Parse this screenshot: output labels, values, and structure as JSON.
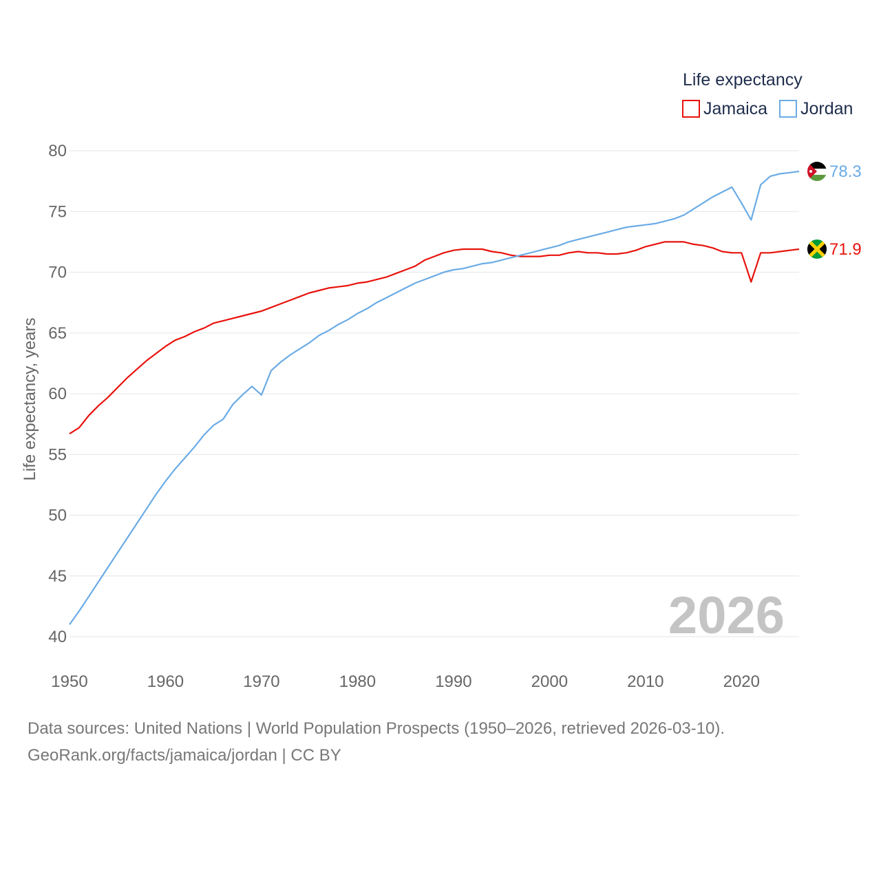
{
  "chart_data": {
    "type": "line",
    "title": "",
    "legend_title": "Life expectancy",
    "ylabel": "Life expectancy, years",
    "xlabel": "",
    "ylim": [
      40,
      80
    ],
    "xlim": [
      1950,
      2026
    ],
    "yticks": [
      40,
      45,
      50,
      55,
      60,
      65,
      70,
      75,
      80
    ],
    "xticks": [
      1950,
      1960,
      1970,
      1980,
      1990,
      2000,
      2010,
      2020
    ],
    "grid": true,
    "legend_position": "top-right",
    "year_overlay": "2026",
    "x": [
      1950,
      1951,
      1952,
      1953,
      1954,
      1955,
      1956,
      1957,
      1958,
      1959,
      1960,
      1961,
      1962,
      1963,
      1964,
      1965,
      1966,
      1967,
      1968,
      1969,
      1970,
      1971,
      1972,
      1973,
      1974,
      1975,
      1976,
      1977,
      1978,
      1979,
      1980,
      1981,
      1982,
      1983,
      1984,
      1985,
      1986,
      1987,
      1988,
      1989,
      1990,
      1991,
      1992,
      1993,
      1994,
      1995,
      1996,
      1997,
      1998,
      1999,
      2000,
      2001,
      2002,
      2003,
      2004,
      2005,
      2006,
      2007,
      2008,
      2009,
      2010,
      2011,
      2012,
      2013,
      2014,
      2015,
      2016,
      2017,
      2018,
      2019,
      2020,
      2021,
      2022,
      2023,
      2024,
      2025,
      2026
    ],
    "series": [
      {
        "name": "Jamaica",
        "color": "#e8120c",
        "end_label": "71.9",
        "flag": "jamaica-flag-icon",
        "values": [
          56.7,
          57.2,
          58.2,
          59.0,
          59.7,
          60.5,
          61.3,
          62.0,
          62.7,
          63.3,
          63.9,
          64.4,
          64.7,
          65.1,
          65.4,
          65.8,
          66.0,
          66.2,
          66.4,
          66.6,
          66.8,
          67.1,
          67.4,
          67.7,
          68.0,
          68.3,
          68.5,
          68.7,
          68.8,
          68.9,
          69.1,
          69.2,
          69.4,
          69.6,
          69.9,
          70.2,
          70.5,
          71.0,
          71.3,
          71.6,
          71.8,
          71.9,
          71.9,
          71.9,
          71.7,
          71.6,
          71.4,
          71.3,
          71.3,
          71.3,
          71.4,
          71.4,
          71.6,
          71.7,
          71.6,
          71.6,
          71.5,
          71.5,
          71.6,
          71.8,
          72.1,
          72.3,
          72.5,
          72.5,
          72.5,
          72.3,
          72.2,
          72.0,
          71.7,
          71.6,
          71.6,
          69.2,
          71.6,
          71.6,
          71.7,
          71.8,
          71.9
        ]
      },
      {
        "name": "Jordan",
        "color": "#6aabe6",
        "end_label": "78.3",
        "flag": "jordan-flag-icon",
        "values": [
          41.0,
          42.1,
          43.3,
          44.5,
          45.7,
          46.9,
          48.1,
          49.3,
          50.5,
          51.7,
          52.8,
          53.8,
          54.7,
          55.6,
          56.6,
          57.4,
          57.9,
          59.1,
          59.9,
          60.6,
          59.9,
          61.9,
          62.6,
          63.2,
          63.7,
          64.2,
          64.8,
          65.2,
          65.7,
          66.1,
          66.6,
          67.0,
          67.5,
          67.9,
          68.3,
          68.7,
          69.1,
          69.4,
          69.7,
          70.0,
          70.2,
          70.3,
          70.5,
          70.7,
          70.8,
          71.0,
          71.2,
          71.4,
          71.6,
          71.8,
          72.0,
          72.2,
          72.5,
          72.7,
          72.9,
          73.1,
          73.3,
          73.5,
          73.7,
          73.8,
          73.9,
          74.0,
          74.2,
          74.4,
          74.7,
          75.2,
          75.7,
          76.2,
          76.6,
          77.0,
          75.7,
          74.3,
          77.2,
          77.9,
          78.1,
          78.2,
          78.3
        ]
      }
    ]
  },
  "footer": {
    "line1": "Data sources: United Nations | World Population Prospects (1950–2026, retrieved 2026-03-10).",
    "line2": "GeoRank.org/facts/jamaica/jordan | CC BY"
  }
}
